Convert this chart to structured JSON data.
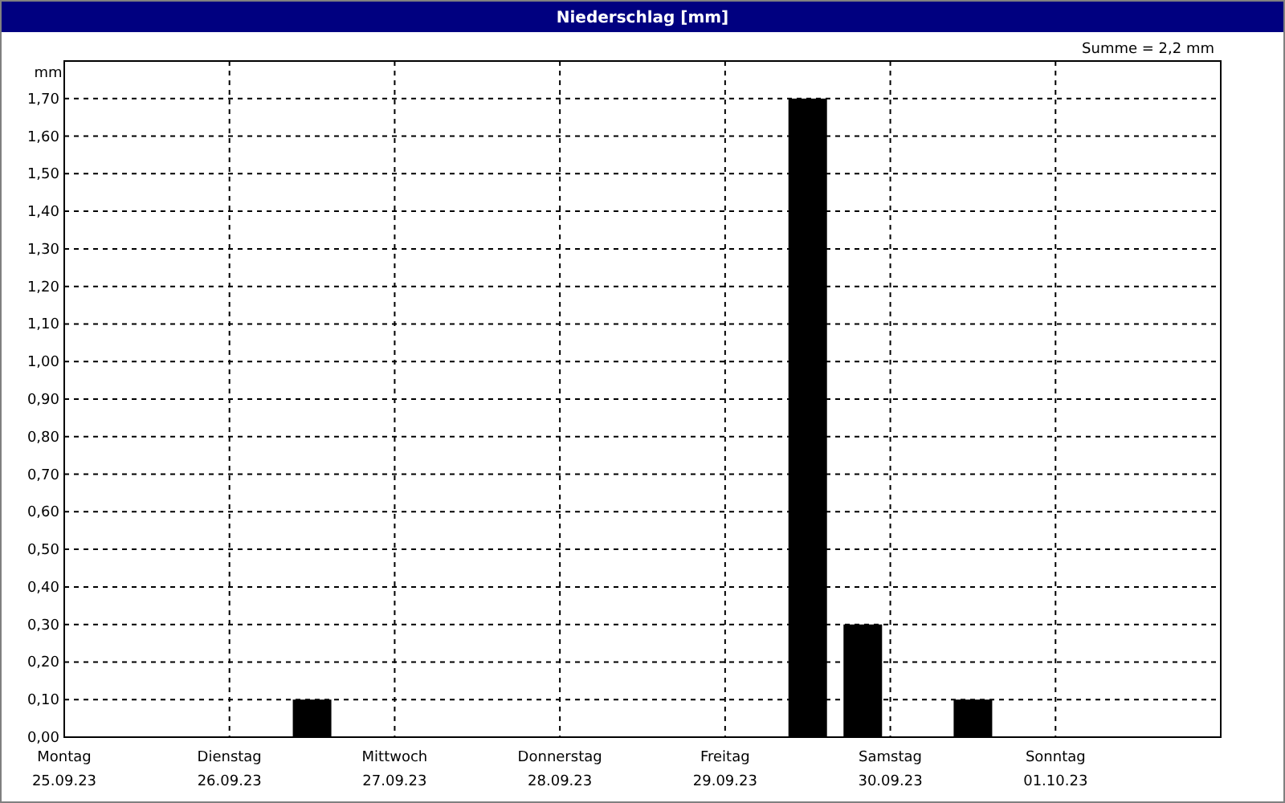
{
  "chart_data": {
    "type": "bar",
    "title": "Niederschlag [mm]",
    "ylabel": "mm",
    "annotations": [
      "Summe = 2,2 mm"
    ],
    "x": [
      "--09-26T12:00",
      "--09-29T12:00",
      "--09-29T20:00",
      "--09-30T12:00"
    ],
    "values": [
      0.1,
      1.7,
      0.3,
      0.1
    ],
    "color": "#000000",
    "xlim": [
      "--09-25",
      "--10-02"
    ],
    "xticks": [
      {
        "value": "--09-25",
        "label": "Montag\n25.09.23"
      },
      {
        "value": "--09-26",
        "label": "Dienstag\n26.09.23"
      },
      {
        "value": "--09-27",
        "label": "Mittwoch\n27.09.23"
      },
      {
        "value": "--09-28",
        "label": "Donnerstag\n28.09.23"
      },
      {
        "value": "--09-29",
        "label": "Freitag\n29.09.23"
      },
      {
        "value": "--09-30",
        "label": "Samstag\n30.09.23"
      },
      {
        "value": "--10-01",
        "label": "Sonntag\n01.10.23"
      }
    ],
    "ylim": [
      0,
      1.8
    ],
    "yticks": [
      {
        "value": 0,
        "label": "0,00"
      },
      {
        "value": 0.1,
        "label": "0,10"
      },
      {
        "value": 0.2,
        "label": "0,20"
      },
      {
        "value": 0.3,
        "label": "0,30"
      },
      {
        "value": 0.4,
        "label": "0,40"
      },
      {
        "value": 0.5,
        "label": "0,50"
      },
      {
        "value": 0.6,
        "label": "0,60"
      },
      {
        "value": 0.7,
        "label": "0,70"
      },
      {
        "value": 0.8,
        "label": "0,80"
      },
      {
        "value": 0.9,
        "label": "0,90"
      },
      {
        "value": 1.0,
        "label": "1,00"
      },
      {
        "value": 1.1,
        "label": "1,10"
      },
      {
        "value": 1.2,
        "label": "1,20"
      },
      {
        "value": 1.3,
        "label": "1,30"
      },
      {
        "value": 1.4,
        "label": "1,40"
      },
      {
        "value": 1.5,
        "label": "1,50"
      },
      {
        "value": 1.6,
        "label": "1,60"
      },
      {
        "value": 1.7,
        "label": "1,70"
      }
    ],
    "grid": true,
    "line_style": "dashed"
  }
}
